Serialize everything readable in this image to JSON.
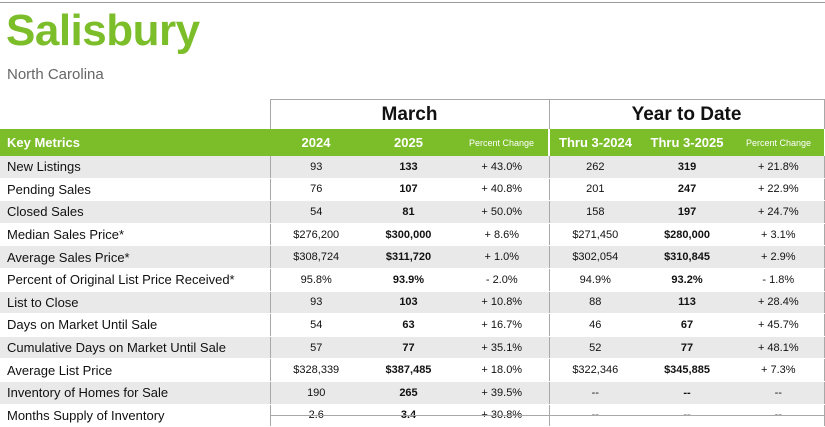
{
  "header": {
    "title": "Salisbury",
    "subtitle": "North Carolina"
  },
  "groups": {
    "month": "March",
    "ytd": "Year to Date"
  },
  "columns": {
    "key_metrics": "Key Metrics",
    "m_2024": "2024",
    "m_2025": "2025",
    "m_pct": "Percent Change",
    "y_2024": "Thru 3-2024",
    "y_2025": "Thru 3-2025",
    "y_pct": "Percent Change"
  },
  "rows": [
    {
      "label": "New Listings",
      "m_2024": "93",
      "m_2025": "133",
      "m_pct": "+ 43.0%",
      "y_2024": "262",
      "y_2025": "319",
      "y_pct": "+ 21.8%"
    },
    {
      "label": "Pending Sales",
      "m_2024": "76",
      "m_2025": "107",
      "m_pct": "+ 40.8%",
      "y_2024": "201",
      "y_2025": "247",
      "y_pct": "+ 22.9%"
    },
    {
      "label": "Closed Sales",
      "m_2024": "54",
      "m_2025": "81",
      "m_pct": "+ 50.0%",
      "y_2024": "158",
      "y_2025": "197",
      "y_pct": "+ 24.7%"
    },
    {
      "label": "Median Sales Price*",
      "m_2024": "$276,200",
      "m_2025": "$300,000",
      "m_pct": "+ 8.6%",
      "y_2024": "$271,450",
      "y_2025": "$280,000",
      "y_pct": "+ 3.1%"
    },
    {
      "label": "Average Sales Price*",
      "m_2024": "$308,724",
      "m_2025": "$311,720",
      "m_pct": "+ 1.0%",
      "y_2024": "$302,054",
      "y_2025": "$310,845",
      "y_pct": "+ 2.9%"
    },
    {
      "label": "Percent of Original List Price Received*",
      "m_2024": "95.8%",
      "m_2025": "93.9%",
      "m_pct": "- 2.0%",
      "y_2024": "94.9%",
      "y_2025": "93.2%",
      "y_pct": "- 1.8%"
    },
    {
      "label": "List to Close",
      "m_2024": "93",
      "m_2025": "103",
      "m_pct": "+ 10.8%",
      "y_2024": "88",
      "y_2025": "113",
      "y_pct": "+ 28.4%"
    },
    {
      "label": "Days on Market Until Sale",
      "m_2024": "54",
      "m_2025": "63",
      "m_pct": "+ 16.7%",
      "y_2024": "46",
      "y_2025": "67",
      "y_pct": "+ 45.7%"
    },
    {
      "label": "Cumulative Days on Market Until Sale",
      "m_2024": "57",
      "m_2025": "77",
      "m_pct": "+ 35.1%",
      "y_2024": "52",
      "y_2025": "77",
      "y_pct": "+ 48.1%"
    },
    {
      "label": "Average List Price",
      "m_2024": "$328,339",
      "m_2025": "$387,485",
      "m_pct": "+ 18.0%",
      "y_2024": "$322,346",
      "y_2025": "$345,885",
      "y_pct": "+ 7.3%"
    },
    {
      "label": "Inventory of Homes for Sale",
      "m_2024": "190",
      "m_2025": "265",
      "m_pct": "+ 39.5%",
      "y_2024": "--",
      "y_2025": "--",
      "y_pct": "--"
    },
    {
      "label": "Months Supply of Inventory",
      "m_2024": "2.6",
      "m_2025": "3.4",
      "m_pct": "+ 30.8%",
      "y_2024": "--",
      "y_2025": "--",
      "y_pct": "--"
    }
  ],
  "colors": {
    "brand_green": "#7cbd2a",
    "row_stripe": "#e9e9e9",
    "subtitle_gray": "#666666"
  }
}
